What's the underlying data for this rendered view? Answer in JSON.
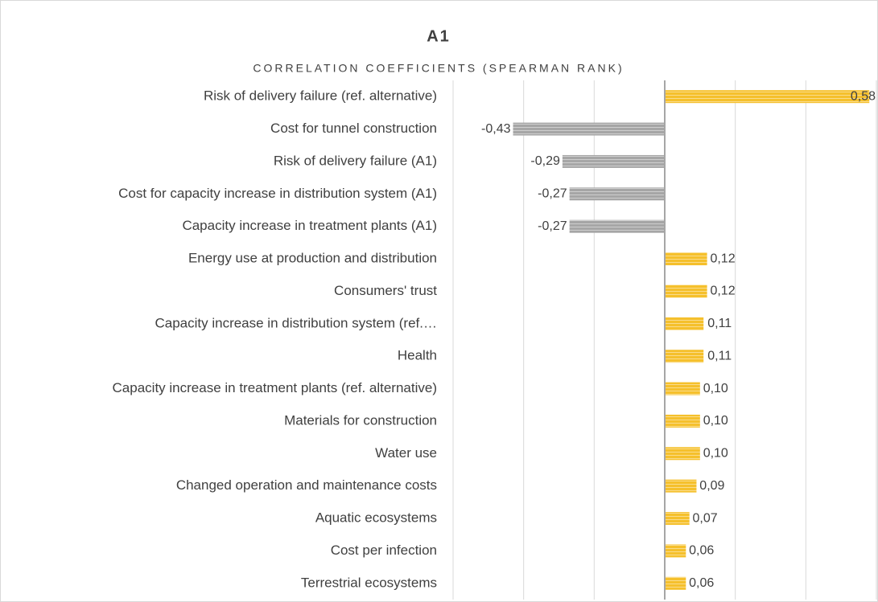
{
  "chart_data": {
    "type": "barh",
    "title": "A1",
    "subtitle": "CORRELATION COEFFICIENTS (SPEARMAN RANK)",
    "categories": [
      "Risk of delivery failure (ref. alternative)",
      "Cost for tunnel construction",
      "Risk of delivery failure (A1)",
      "Cost for capacity increase in distribution system (A1)",
      "Capacity increase in treatment plants (A1)",
      "Energy use at production and distribution",
      "Consumers' trust",
      "Capacity increase in distribution system (ref.…",
      "Health",
      "Capacity increase in treatment plants (ref. alternative)",
      "Materials for construction",
      "Water use",
      "Changed operation and maintenance costs",
      "Aquatic ecosystems",
      "Cost per infection",
      "Terrestrial ecosystems"
    ],
    "values": [
      0.58,
      -0.43,
      -0.29,
      -0.27,
      -0.27,
      0.12,
      0.12,
      0.11,
      0.11,
      0.1,
      0.1,
      0.1,
      0.09,
      0.07,
      0.06,
      0.06
    ],
    "value_labels": [
      "0,58",
      "-0,43",
      "-0,29",
      "-0,27",
      "-0,27",
      "0,12",
      "0,12",
      "0,11",
      "0,11",
      "0,10",
      "0,10",
      "0,10",
      "0,09",
      "0,07",
      "0,06",
      "0,06"
    ],
    "color": "#f5c02c",
    "negative_color": "#a6a6a6",
    "xlim": [
      -0.6,
      0.6
    ],
    "xticks": [
      -0.6,
      -0.4,
      -0.2,
      0,
      0.2,
      0.4,
      0.6
    ],
    "grid": true
  }
}
